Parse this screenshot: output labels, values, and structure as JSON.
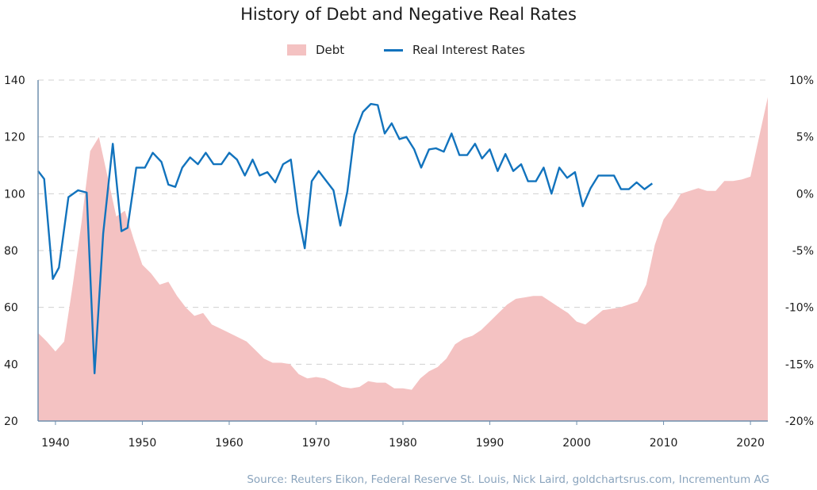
{
  "chart_data": {
    "type": "area",
    "title": "History of Debt and Negative Real Rates",
    "legend": {
      "placement": "top-center",
      "items": [
        "Debt",
        "Real Interest Rates"
      ]
    },
    "xlim": [
      1938,
      2022
    ],
    "x_ticks": [
      1940,
      1950,
      1960,
      1970,
      1980,
      1990,
      2000,
      2010,
      2020
    ],
    "y_left": {
      "lim": [
        20,
        140
      ],
      "ticks": [
        20,
        40,
        60,
        80,
        100,
        120,
        140
      ]
    },
    "y_right": {
      "lim": [
        -20,
        10
      ],
      "ticks": [
        -20,
        -15,
        -10,
        -5,
        0,
        5,
        10
      ],
      "tick_labels": [
        "-20%",
        "-15%",
        "-10%",
        "-5%",
        "0%",
        "5%",
        "10%"
      ]
    },
    "grid": "horizontal dashed",
    "series": [
      {
        "name": "Debt",
        "axis": "left",
        "kind": "area",
        "color": "#f4c2c2",
        "points": [
          [
            1938,
            51
          ],
          [
            1939,
            48
          ],
          [
            1940,
            44.5
          ],
          [
            1941,
            48
          ],
          [
            1942,
            68
          ],
          [
            1943,
            90
          ],
          [
            1944,
            115
          ],
          [
            1945,
            120
          ],
          [
            1946,
            106
          ],
          [
            1947,
            92
          ],
          [
            1948,
            94
          ],
          [
            1949,
            84
          ],
          [
            1950,
            75
          ],
          [
            1951,
            72
          ],
          [
            1952,
            68
          ],
          [
            1953,
            69
          ],
          [
            1954,
            64
          ],
          [
            1955,
            60
          ],
          [
            1956,
            57
          ],
          [
            1957,
            58
          ],
          [
            1958,
            54
          ],
          [
            1959,
            52.5
          ],
          [
            1960,
            51
          ],
          [
            1961,
            49.5
          ],
          [
            1962,
            48
          ],
          [
            1963,
            45
          ],
          [
            1964,
            42
          ],
          [
            1965,
            40.5
          ],
          [
            1966,
            40.5
          ],
          [
            1967,
            40
          ],
          [
            1968,
            36.5
          ],
          [
            1969,
            35
          ],
          [
            1970,
            35.5
          ],
          [
            1971,
            35
          ],
          [
            1972,
            33.5
          ],
          [
            1973,
            32
          ],
          [
            1974,
            31.5
          ],
          [
            1975,
            32
          ],
          [
            1976,
            34
          ],
          [
            1977,
            33.5
          ],
          [
            1978,
            33.5
          ],
          [
            1979,
            31.5
          ],
          [
            1980,
            31.5
          ],
          [
            1981,
            31
          ],
          [
            1982,
            35
          ],
          [
            1983,
            37.5
          ],
          [
            1984,
            39
          ],
          [
            1985,
            42
          ],
          [
            1986,
            47
          ],
          [
            1987,
            49
          ],
          [
            1988,
            50
          ],
          [
            1989,
            52
          ],
          [
            1990,
            55
          ],
          [
            1991,
            58
          ],
          [
            1992,
            61
          ],
          [
            1993,
            63
          ],
          [
            1994,
            63.5
          ],
          [
            1995,
            64
          ],
          [
            1996,
            64
          ],
          [
            1997,
            62
          ],
          [
            1998,
            60
          ],
          [
            1999,
            58
          ],
          [
            2000,
            55
          ],
          [
            2001,
            54
          ],
          [
            2002,
            56.5
          ],
          [
            2003,
            59
          ],
          [
            2004,
            59.5
          ],
          [
            2005,
            60
          ],
          [
            2006,
            61
          ],
          [
            2007,
            62
          ],
          [
            2008,
            68
          ],
          [
            2009,
            82
          ],
          [
            2010,
            91
          ],
          [
            2011,
            95
          ],
          [
            2012,
            100
          ],
          [
            2013,
            101
          ],
          [
            2014,
            102
          ],
          [
            2015,
            101
          ],
          [
            2016,
            101
          ],
          [
            2017,
            104.5
          ],
          [
            2018,
            104.5
          ],
          [
            2019,
            105
          ],
          [
            2020,
            106
          ],
          [
            2021,
            120
          ],
          [
            2022,
            134
          ]
        ]
      },
      {
        "name": "Real Interest Rates",
        "axis": "right",
        "kind": "line",
        "color": "#1273bd",
        "points": [
          [
            1938,
            2
          ],
          [
            1938.7,
            1.3
          ],
          [
            1939.7,
            -7.5
          ],
          [
            1940.4,
            -6.5
          ],
          [
            1941.5,
            -0.3
          ],
          [
            1942.6,
            0.3
          ],
          [
            1943.6,
            0.1
          ],
          [
            1944.5,
            -15.8
          ],
          [
            1945.5,
            -3.5
          ],
          [
            1946.6,
            4.4
          ],
          [
            1947.6,
            -3.3
          ],
          [
            1948.3,
            -3.0
          ],
          [
            1949.3,
            2.3
          ],
          [
            1950.3,
            2.3
          ],
          [
            1951.2,
            3.6
          ],
          [
            1952.2,
            2.8
          ],
          [
            1953,
            0.8
          ],
          [
            1953.8,
            0.6
          ],
          [
            1954.6,
            2.3
          ],
          [
            1955.5,
            3.2
          ],
          [
            1956.4,
            2.6
          ],
          [
            1957.3,
            3.6
          ],
          [
            1958.2,
            2.6
          ],
          [
            1959.1,
            2.6
          ],
          [
            1960,
            3.6
          ],
          [
            1960.9,
            3.0
          ],
          [
            1961.8,
            1.6
          ],
          [
            1962.7,
            3.0
          ],
          [
            1963.5,
            1.6
          ],
          [
            1964.4,
            1.9
          ],
          [
            1965.3,
            1.0
          ],
          [
            1966.2,
            2.6
          ],
          [
            1967.1,
            3.0
          ],
          [
            1967.9,
            -1.7
          ],
          [
            1968.7,
            -4.8
          ],
          [
            1969.5,
            1.1
          ],
          [
            1970.3,
            2.0
          ],
          [
            1971.1,
            1.2
          ],
          [
            1972,
            0.3
          ],
          [
            1972.8,
            -2.8
          ],
          [
            1973.6,
            0.2
          ],
          [
            1974.4,
            5.2
          ],
          [
            1975.4,
            7.2
          ],
          [
            1976.3,
            7.9
          ],
          [
            1977.1,
            7.8
          ],
          [
            1977.9,
            5.3
          ],
          [
            1978.7,
            6.2
          ],
          [
            1979.6,
            4.8
          ],
          [
            1980.4,
            5.0
          ],
          [
            1981.3,
            3.9
          ],
          [
            1982.1,
            2.3
          ],
          [
            1983,
            3.9
          ],
          [
            1983.8,
            4.0
          ],
          [
            1984.7,
            3.7
          ],
          [
            1985.6,
            5.3
          ],
          [
            1986.5,
            3.4
          ],
          [
            1987.4,
            3.4
          ],
          [
            1988.3,
            4.4
          ],
          [
            1989.1,
            3.1
          ],
          [
            1990,
            3.9
          ],
          [
            1990.9,
            2.0
          ],
          [
            1991.8,
            3.5
          ],
          [
            1992.7,
            2.0
          ],
          [
            1993.6,
            2.6
          ],
          [
            1994.4,
            1.1
          ],
          [
            1995.3,
            1.1
          ],
          [
            1996.2,
            2.3
          ],
          [
            1997.1,
            0.0
          ],
          [
            1998,
            2.3
          ],
          [
            1998.9,
            1.4
          ],
          [
            1999.8,
            1.9
          ],
          [
            2000.7,
            -1.1
          ],
          [
            2001.6,
            0.5
          ],
          [
            2002.5,
            1.6
          ],
          [
            2003.4,
            1.6
          ],
          [
            2004.3,
            1.6
          ],
          [
            2005.1,
            0.4
          ],
          [
            2006,
            0.4
          ],
          [
            2006.9,
            1.0
          ],
          [
            2007.8,
            0.4
          ],
          [
            2008.7,
            0.9
          ]
        ]
      }
    ],
    "source_note": "Source: Reuters Eikon, Federal Reserve St. Louis, Nick Laird, goldchartsrus.com, Incrementum AG"
  }
}
